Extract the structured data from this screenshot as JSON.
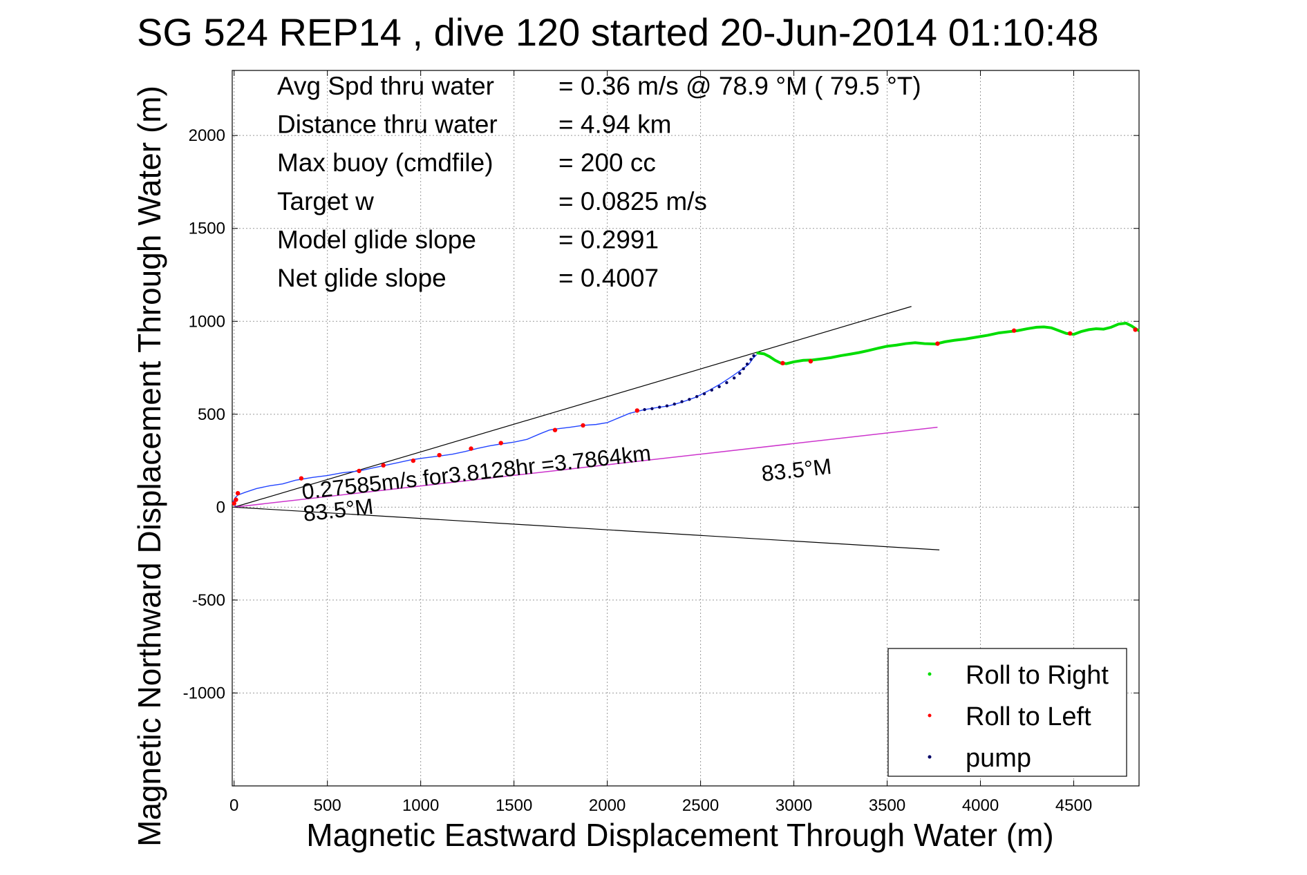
{
  "chart_data": {
    "type": "scatter",
    "title": "SG 524   REP14  , dive 120 started 20-Jun-2014 01:10:48",
    "xlabel": "Magnetic Eastward Displacement Through Water (m)",
    "ylabel": "Magnetic Northward Displacement Through Water (m)",
    "xlim": [
      -10,
      4850
    ],
    "ylim": [
      -1500,
      2350
    ],
    "xticks": [
      0,
      500,
      1000,
      1500,
      2000,
      2500,
      3000,
      3500,
      4000,
      4500
    ],
    "yticks": [
      -1000,
      -500,
      0,
      500,
      1000,
      1500,
      2000
    ],
    "grid": true,
    "legend_position": "bottom-right",
    "stats": [
      {
        "label": "Avg Spd thru water",
        "value": "=  0.36 m/s @  78.9 °M ( 79.5 °T)"
      },
      {
        "label": "Distance thru water",
        "value": "=  4.94 km"
      },
      {
        "label": "Max buoy (cmdfile)",
        "value": "= 200 cc"
      },
      {
        "label": "Target w",
        "value": "= 0.0825 m/s"
      },
      {
        "label": "Model glide slope",
        "value": "= 0.2991"
      },
      {
        "label": "Net glide slope",
        "value": "= 0.4007"
      }
    ],
    "annotations": {
      "current_text": "0.27585m/s for3.8128hr =3.7864km",
      "heading_start": "83.5°M",
      "heading_end": "83.5°M"
    },
    "legend": [
      {
        "label": "Roll to Right",
        "color": "#00dd00"
      },
      {
        "label": "Roll to Left",
        "color": "#ff0000"
      },
      {
        "label": "pump",
        "color": "#000066"
      }
    ],
    "track_color": "#2244ff",
    "current_line_color": "#cc33cc",
    "envelope_color": "#000000",
    "envelope_upper": {
      "x": [
        0,
        3630
      ],
      "y": [
        0,
        1080
      ]
    },
    "envelope_lower": {
      "x": [
        0,
        3780
      ],
      "y": [
        0,
        -230
      ]
    },
    "current_line": {
      "x": [
        0,
        3770
      ],
      "y": [
        0,
        430
      ]
    },
    "track_blue": {
      "x": [
        10,
        0,
        -5,
        5,
        20,
        60,
        120,
        190,
        260,
        330,
        360,
        420,
        500,
        580,
        670,
        740,
        810,
        880,
        950,
        1020,
        1100,
        1170,
        1240,
        1300,
        1370,
        1430,
        1500,
        1570,
        1640,
        1690,
        1720,
        1800,
        1870,
        1940,
        2000,
        2060,
        2120,
        2160,
        2200,
        2260,
        2330,
        2400,
        2470,
        2540,
        2610,
        2670,
        2720,
        2760,
        2780,
        2800
      ],
      "y": [
        5,
        15,
        30,
        50,
        65,
        80,
        100,
        115,
        125,
        145,
        150,
        160,
        170,
        185,
        195,
        210,
        225,
        240,
        255,
        265,
        275,
        285,
        300,
        315,
        330,
        340,
        350,
        365,
        395,
        415,
        420,
        430,
        440,
        445,
        455,
        480,
        505,
        515,
        525,
        535,
        545,
        565,
        590,
        625,
        665,
        705,
        740,
        770,
        800,
        820
      ]
    },
    "track_green": {
      "x": [
        2800,
        2840,
        2870,
        2900,
        2930,
        2960,
        3000,
        3050,
        3100,
        3150,
        3200,
        3250,
        3300,
        3350,
        3400,
        3450,
        3500,
        3550,
        3600,
        3650,
        3700,
        3760,
        3810,
        3860,
        3920,
        3980,
        4040,
        4100,
        4160,
        4200,
        4250,
        4300,
        4340,
        4380,
        4420,
        4460,
        4500,
        4540,
        4580,
        4620,
        4660,
        4700,
        4740,
        4780,
        4810,
        4840,
        4850
      ],
      "y": [
        830,
        825,
        810,
        790,
        775,
        772,
        782,
        790,
        792,
        798,
        805,
        815,
        823,
        832,
        843,
        855,
        866,
        872,
        880,
        885,
        880,
        878,
        890,
        898,
        905,
        915,
        925,
        938,
        945,
        950,
        960,
        968,
        970,
        965,
        950,
        935,
        930,
        945,
        955,
        960,
        958,
        968,
        985,
        990,
        975,
        955,
        950
      ]
    },
    "roll_left_points": {
      "x": [
        0,
        10,
        20,
        360,
        670,
        800,
        960,
        1100,
        1270,
        1430,
        1720,
        1870,
        2160,
        2940,
        3090,
        3770,
        4180,
        4480,
        4830
      ],
      "y": [
        20,
        40,
        75,
        155,
        195,
        225,
        250,
        280,
        315,
        345,
        415,
        440,
        520,
        775,
        785,
        880,
        950,
        935,
        955
      ]
    },
    "pump_points": {
      "x": [
        2200,
        2240,
        2280,
        2320,
        2360,
        2400,
        2440,
        2480,
        2520,
        2560,
        2600,
        2640,
        2680,
        2710,
        2730,
        2750,
        2770,
        2785
      ],
      "y": [
        525,
        530,
        538,
        545,
        555,
        568,
        580,
        595,
        610,
        630,
        648,
        670,
        695,
        720,
        745,
        770,
        795,
        815
      ]
    }
  }
}
